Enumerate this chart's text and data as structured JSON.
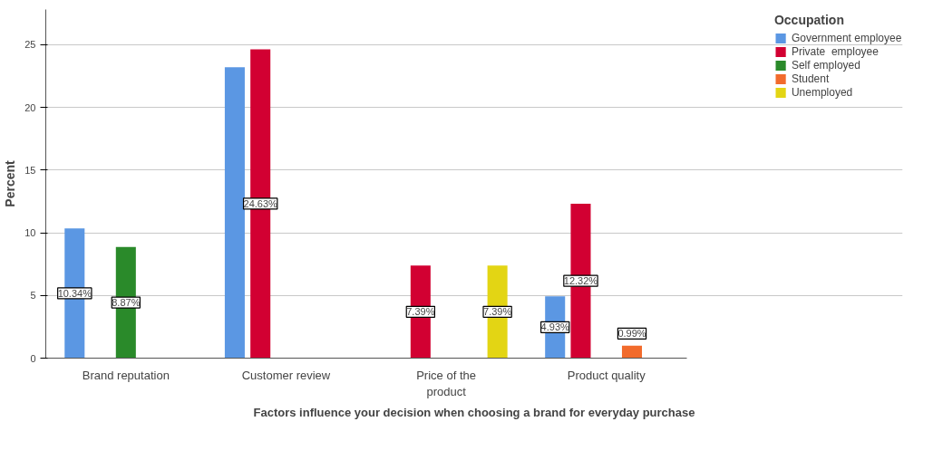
{
  "chart_data": {
    "type": "bar",
    "xlabel": "Factors influence your decision when choosing a brand for everyday purchase",
    "ylabel": "Percent",
    "legend_title": "Occupation",
    "categories": [
      "Brand reputation",
      "Customer review",
      "Price of the product",
      "Product quality"
    ],
    "series": [
      {
        "name": "Government employee",
        "color": "#5b97e3",
        "values": [
          10.34,
          23.2,
          null,
          4.93
        ],
        "value_labels": [
          "10.34%",
          null,
          null,
          "4.93%"
        ]
      },
      {
        "name": "Private  employee",
        "color": "#d20032",
        "values": [
          null,
          24.63,
          7.39,
          12.32
        ],
        "value_labels": [
          null,
          "24.63%",
          "7.39%",
          "12.32%"
        ]
      },
      {
        "name": "Self employed",
        "color": "#2a8a2a",
        "values": [
          8.87,
          null,
          null,
          null
        ],
        "value_labels": [
          "8.87%",
          null,
          null,
          null
        ]
      },
      {
        "name": "Student",
        "color": "#f26b2c",
        "values": [
          null,
          null,
          null,
          0.99
        ],
        "value_labels": [
          null,
          null,
          null,
          "0.99%"
        ]
      },
      {
        "name": "Unemployed",
        "color": "#e3d514",
        "values": [
          null,
          null,
          7.39,
          null
        ],
        "value_labels": [
          null,
          null,
          "7.39%",
          null
        ]
      }
    ],
    "ylim": [
      0,
      27.8
    ],
    "yticks": [
      0,
      5,
      10,
      15,
      20,
      25
    ],
    "grid": "y",
    "legend": "top right"
  }
}
